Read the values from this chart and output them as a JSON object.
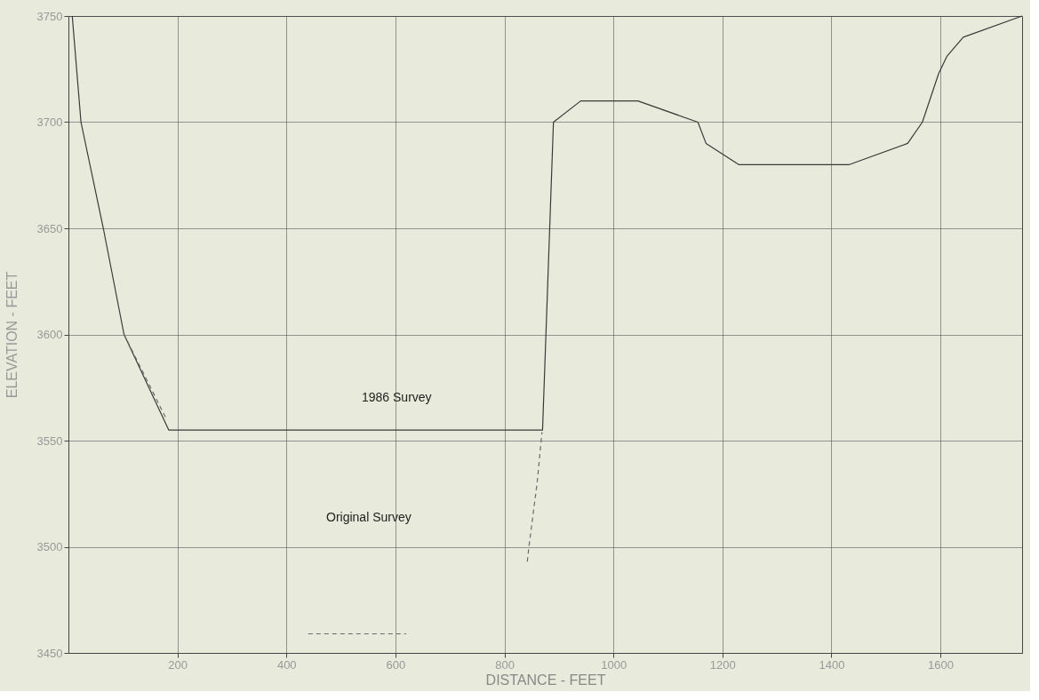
{
  "chart_data": {
    "type": "line",
    "xlabel": "DISTANCE - FEET",
    "ylabel": "ELEVATION - FEET",
    "xlim": [
      0,
      1750
    ],
    "xticks": [
      200,
      400,
      600,
      800,
      1000,
      1200,
      1400,
      1600
    ],
    "ylim": [
      3450,
      3750
    ],
    "yticks": [
      3450,
      3500,
      3550,
      3600,
      3650,
      3700,
      3750
    ],
    "grid": true,
    "marker": "none",
    "series": [
      {
        "color": "#3a3a3a",
        "line_style": "solid",
        "x": [
          7,
          23,
          64,
          102,
          184,
          420,
          870,
          890,
          940,
          1045,
          1155,
          1170,
          1230,
          1433,
          1540,
          1567,
          1597,
          1612,
          1642,
          1750
        ],
        "values": [
          3750,
          3700,
          3650,
          3600,
          3555,
          3555,
          3555,
          3700,
          3710,
          3710,
          3700,
          3690,
          3680,
          3680,
          3690,
          3700,
          3723,
          3731,
          3740,
          3750
        ]
      },
      {
        "color": "#6a6a6a",
        "line_style": "dashed",
        "x": [
          102,
          180,
          300,
          440,
          620,
          700,
          842,
          845,
          860,
          869
        ],
        "values": [
          3600,
          3560,
          null,
          3459,
          3459,
          null,
          3493,
          3500,
          3530,
          3554
        ]
      }
    ],
    "annotations": [
      "1986 Survey",
      "Original Survey"
    ]
  }
}
